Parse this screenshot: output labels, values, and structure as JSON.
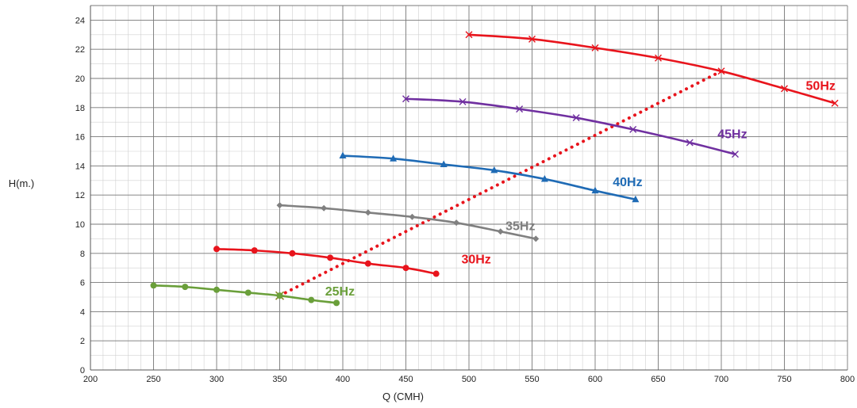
{
  "chart_data": {
    "type": "line",
    "xlabel": "Q (CMH)",
    "ylabel": "H(m.)",
    "xlim": [
      200,
      800
    ],
    "ylim": [
      0,
      25
    ],
    "x_ticks": [
      200,
      250,
      300,
      350,
      400,
      450,
      500,
      550,
      600,
      650,
      700,
      750,
      800
    ],
    "y_ticks": [
      0,
      2,
      4,
      6,
      8,
      10,
      12,
      14,
      16,
      18,
      20,
      22,
      24
    ],
    "grid": true,
    "series": [
      {
        "name": "50Hz",
        "color": "#e8141c",
        "marker": "x",
        "x": [
          500,
          550,
          600,
          650,
          700,
          750,
          790
        ],
        "y": [
          23.0,
          22.7,
          22.1,
          21.4,
          20.5,
          19.3,
          18.3
        ],
        "label_at": [
          767,
          19.2
        ]
      },
      {
        "name": "45Hz",
        "color": "#7030a0",
        "marker": "x",
        "x": [
          450,
          495,
          540,
          585,
          630,
          675,
          711
        ],
        "y": [
          18.6,
          18.4,
          17.9,
          17.3,
          16.5,
          15.6,
          14.8
        ],
        "label_at": [
          697,
          15.9
        ]
      },
      {
        "name": "40Hz",
        "color": "#1f6bb5",
        "marker": "triangle",
        "x": [
          400,
          440,
          480,
          520,
          560,
          600,
          632
        ],
        "y": [
          14.7,
          14.5,
          14.1,
          13.7,
          13.1,
          12.3,
          11.7
        ],
        "label_at": [
          614,
          12.6
        ]
      },
      {
        "name": "35Hz",
        "color": "#808080",
        "marker": "diamond",
        "x": [
          350,
          385,
          420,
          455,
          490,
          525,
          553
        ],
        "y": [
          11.3,
          11.1,
          10.8,
          10.5,
          10.1,
          9.5,
          9.0
        ],
        "label_at": [
          529,
          9.6
        ]
      },
      {
        "name": "30Hz",
        "color": "#e8141c",
        "marker": "circle",
        "x": [
          300,
          330,
          360,
          390,
          420,
          450,
          474
        ],
        "y": [
          8.3,
          8.2,
          8.0,
          7.7,
          7.3,
          7.0,
          6.6
        ],
        "label_at": [
          494,
          7.3
        ]
      },
      {
        "name": "25Hz",
        "color": "#6a9f3a",
        "marker": "circle",
        "x": [
          250,
          275,
          300,
          325,
          350,
          375,
          395
        ],
        "y": [
          5.8,
          5.7,
          5.5,
          5.3,
          5.1,
          4.8,
          4.6
        ],
        "label_at": [
          386,
          5.1
        ]
      }
    ],
    "system_curve": {
      "color": "#e8141c",
      "style": "dotted",
      "x": [
        350,
        700
      ],
      "y": [
        5.1,
        20.5
      ]
    }
  }
}
